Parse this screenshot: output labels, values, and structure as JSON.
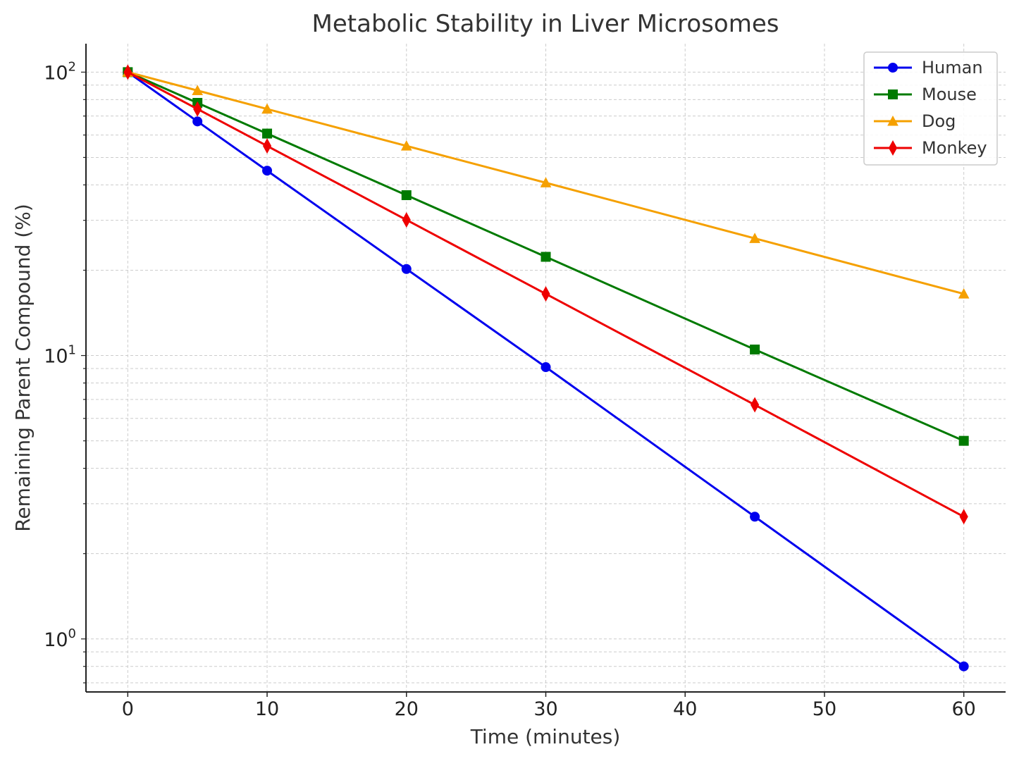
{
  "chart_data": {
    "type": "line",
    "title": "Metabolic Stability in Liver Microsomes",
    "xlabel": "Time (minutes)",
    "ylabel": "Remaining Parent Compound (%)",
    "x": [
      0,
      5,
      10,
      20,
      30,
      45,
      60
    ],
    "xlim": [
      -3,
      63
    ],
    "ylim": [
      0.65,
      126
    ],
    "yscale": "log",
    "grid": true,
    "legend_position": "top-right",
    "xticks": [
      "0",
      "10",
      "20",
      "30",
      "40",
      "50",
      "60"
    ],
    "yticks": [
      {
        "base": "10",
        "exp": "0"
      },
      {
        "base": "10",
        "exp": "1"
      },
      {
        "base": "10",
        "exp": "2"
      }
    ],
    "series": [
      {
        "name": "Human",
        "color": "#0000ee",
        "marker": "circle",
        "values": [
          100,
          67.0,
          44.9,
          20.2,
          9.1,
          2.7,
          0.8
        ]
      },
      {
        "name": "Mouse",
        "color": "#007a00",
        "marker": "square",
        "values": [
          100,
          77.9,
          60.7,
          36.8,
          22.3,
          10.5,
          5.0
        ]
      },
      {
        "name": "Dog",
        "color": "#f5a000",
        "marker": "triangle",
        "values": [
          100,
          86.1,
          74.1,
          54.9,
          40.7,
          25.9,
          16.5
        ]
      },
      {
        "name": "Monkey",
        "color": "#ee0000",
        "marker": "diamond",
        "values": [
          100,
          74.1,
          54.9,
          30.1,
          16.5,
          6.7,
          2.7
        ]
      }
    ]
  }
}
